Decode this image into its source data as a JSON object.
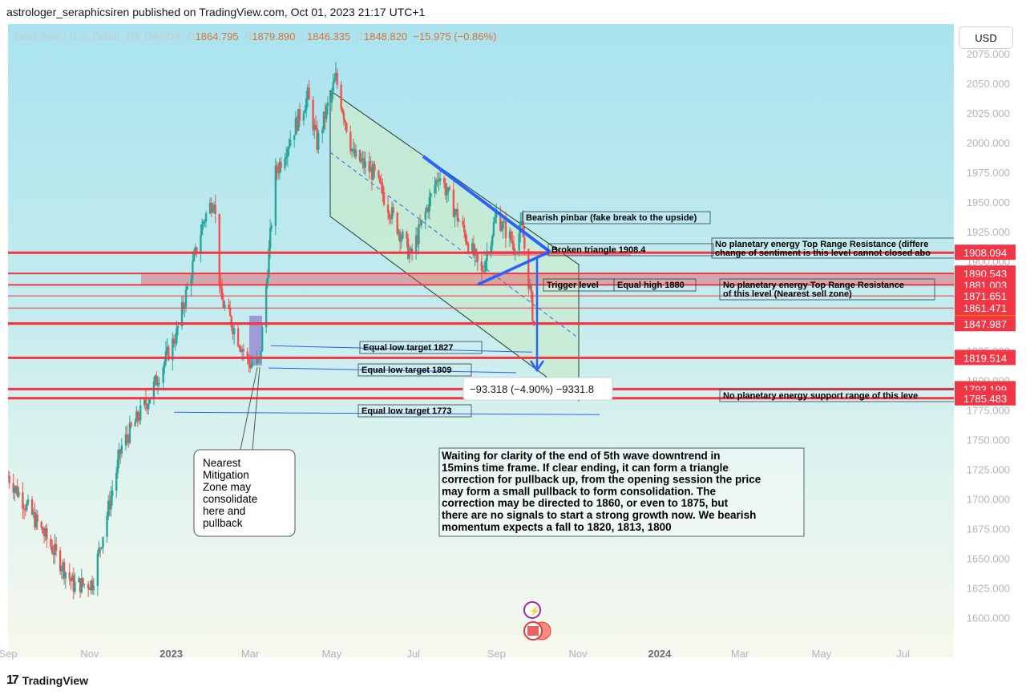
{
  "header": {
    "publisher_line": "astrologer_seraphicsiren published on TradingView.com, Oct 01, 2023 21:17 UTC+1"
  },
  "legend": {
    "symbol": "Gold Spot / U.S. Dollar, 1D, OANDA",
    "o_label": "O",
    "o_value": "1864.795",
    "h_label": "H",
    "h_value": "1879.890",
    "l_label": "L",
    "l_value": "1846.335",
    "c_label": "C",
    "c_value": "1848.820",
    "change": "−15.975 (−0.86%)"
  },
  "currency_button": "USD",
  "footer": {
    "logo": "17",
    "brand": "TradingView"
  },
  "colors": {
    "up": "#26a69a",
    "down": "#ef5350",
    "accent": "#e36f2c",
    "level_line": "#f23645",
    "trend_blue": "#2962ff",
    "channel_fill": "#c8ebcf"
  },
  "chart_data": {
    "type": "candlestick",
    "symbol": "XAUUSD",
    "timeframe": "1D",
    "ylim": [
      1588,
      2090
    ],
    "y_ticks": [
      1600,
      1625,
      1650,
      1675,
      1700,
      1725,
      1750,
      1775,
      1800,
      1825,
      1850,
      1875,
      1900,
      1925,
      1950,
      1975,
      2000,
      2025,
      2050,
      2075
    ],
    "x_labels": [
      "Sep",
      "Nov",
      "2023",
      "Mar",
      "May",
      "Jul",
      "Sep",
      "Nov",
      "2024",
      "Mar",
      "May",
      "Jul"
    ],
    "close_anchors": [
      {
        "date": "2022-09-01",
        "close": 1720
      },
      {
        "date": "2022-10-01",
        "close": 1665
      },
      {
        "date": "2022-10-20",
        "close": 1628
      },
      {
        "date": "2022-11-03",
        "close": 1630
      },
      {
        "date": "2022-11-25",
        "close": 1745
      },
      {
        "date": "2022-12-15",
        "close": 1785
      },
      {
        "date": "2023-01-05",
        "close": 1840
      },
      {
        "date": "2023-01-25",
        "close": 1935
      },
      {
        "date": "2023-02-02",
        "close": 1955
      },
      {
        "date": "2023-02-07",
        "close": 1870
      },
      {
        "date": "2023-02-28",
        "close": 1815
      },
      {
        "date": "2023-03-08",
        "close": 1815
      },
      {
        "date": "2023-03-20",
        "close": 1975
      },
      {
        "date": "2023-04-13",
        "close": 2040
      },
      {
        "date": "2023-04-20",
        "close": 2000
      },
      {
        "date": "2023-05-04",
        "close": 2055
      },
      {
        "date": "2023-05-17",
        "close": 1990
      },
      {
        "date": "2023-06-01",
        "close": 1975
      },
      {
        "date": "2023-06-29",
        "close": 1905
      },
      {
        "date": "2023-07-20",
        "close": 1975
      },
      {
        "date": "2023-08-21",
        "close": 1890
      },
      {
        "date": "2023-09-01",
        "close": 1940
      },
      {
        "date": "2023-09-14",
        "close": 1915
      },
      {
        "date": "2023-09-20",
        "close": 1930
      },
      {
        "date": "2023-09-29",
        "close": 1848.82
      }
    ],
    "horizontal_levels": [
      1908.094,
      1890.543,
      1881.003,
      1871.651,
      1861.471,
      1848.82,
      1847.987,
      1819.514,
      1793.199,
      1785.483
    ],
    "price_labels": [
      {
        "value": "1908.094",
        "price": 1908.094,
        "color": "#f23645"
      },
      {
        "value": "1890.543",
        "price": 1890.543,
        "color": "#f23645"
      },
      {
        "value": "1881.003",
        "price": 1881.003,
        "color": "#f23645"
      },
      {
        "value": "1871.651",
        "price": 1871.651,
        "color": "#f23645"
      },
      {
        "value": "1861.471",
        "price": 1861.471,
        "color": "#f23645"
      },
      {
        "value": "1848.820",
        "price": 1848.82,
        "color": "#f57c00"
      },
      {
        "value": "1847.987",
        "price": 1847.987,
        "color": "#f23645"
      },
      {
        "value": "1819.514",
        "price": 1819.514,
        "color": "#f23645"
      },
      {
        "value": "1793.199",
        "price": 1793.199,
        "color": "#f23645"
      },
      {
        "value": "1785.483",
        "price": 1785.483,
        "color": "#f23645"
      }
    ],
    "annotations": [
      {
        "text": "Bearish pinbar (fake break to the upside)"
      },
      {
        "text": "Broken triangle 1908.4"
      },
      {
        "text": "No planetary energy Top Range Resistance (differe",
        "text2": "change of sentiment is this level cannot closed abo"
      },
      {
        "text": "Trigger level"
      },
      {
        "text": "Equal high 1880"
      },
      {
        "text": "No planetary energy Top Range Resistance",
        "text2": "of this level (Nearest sell zone)"
      },
      {
        "text": "Equal low target 1827",
        "price": 1827
      },
      {
        "text": "Equal low target 1809",
        "price": 1809
      },
      {
        "text": "Equal low target 1773",
        "price": 1773
      },
      {
        "text": "No planetary energy support range of this leve"
      }
    ],
    "measure_label": "−93.318 (−4.90%) −9331.8",
    "note_mitigation": "Nearest\nMitigation\nZone may\nconsolidate\nhere and\npullback",
    "note_main": "Waiting for clarity of the end of 5th wave downtrend in\n15mins time frame. If clear ending, it can form a triangle\ncorrection for pullback up, from the opening session the price\nmay form a small pullback to form consolidation. The\ncorrection may be directed to 1860, or even to 1875, but\nthere are no signals to start a strong growth now. We bearish\nmomentum expects a fall to 1820, 1813, 1800"
  }
}
